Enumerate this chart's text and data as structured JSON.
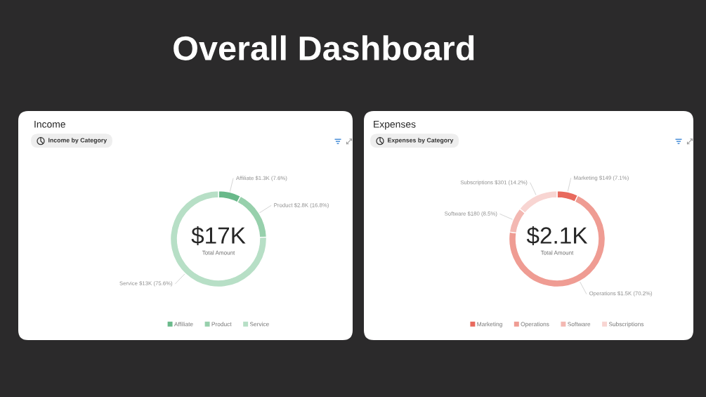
{
  "chart_data": [
    {
      "type": "other",
      "title": "Overall Dashboard"
    },
    {
      "type": "donut",
      "title": "Income",
      "subtitle": "Income by Category",
      "categories": [
        "Affiliate",
        "Product",
        "Service"
      ],
      "values": [
        7.6,
        16.8,
        75.6
      ],
      "colors": [
        "#69b98a",
        "#97d0ac",
        "#b7dfc6"
      ],
      "value_labels": [
        "$1.3K (7.6%)",
        "$2.8K (16.8%)",
        "$13K (75.6%)"
      ],
      "annotations": [
        "$17K",
        "Total Amount"
      ],
      "legend": "bottom"
    },
    {
      "type": "donut",
      "title": "Expenses",
      "subtitle": "Expenses by Category",
      "categories": [
        "Marketing",
        "Operations",
        "Software",
        "Subscriptions"
      ],
      "values": [
        7.1,
        70.2,
        8.5,
        14.2
      ],
      "colors": [
        "#e8695d",
        "#ef9c93",
        "#f3b8b2",
        "#f8d5d2"
      ],
      "value_labels": [
        "$149 (7.1%)",
        "$1.5K (70.2%)",
        "$180 (8.5%)",
        "$301 (14.2%)"
      ],
      "annotations": [
        "$2.1K",
        "Total Amount"
      ],
      "legend": "bottom"
    }
  ]
}
